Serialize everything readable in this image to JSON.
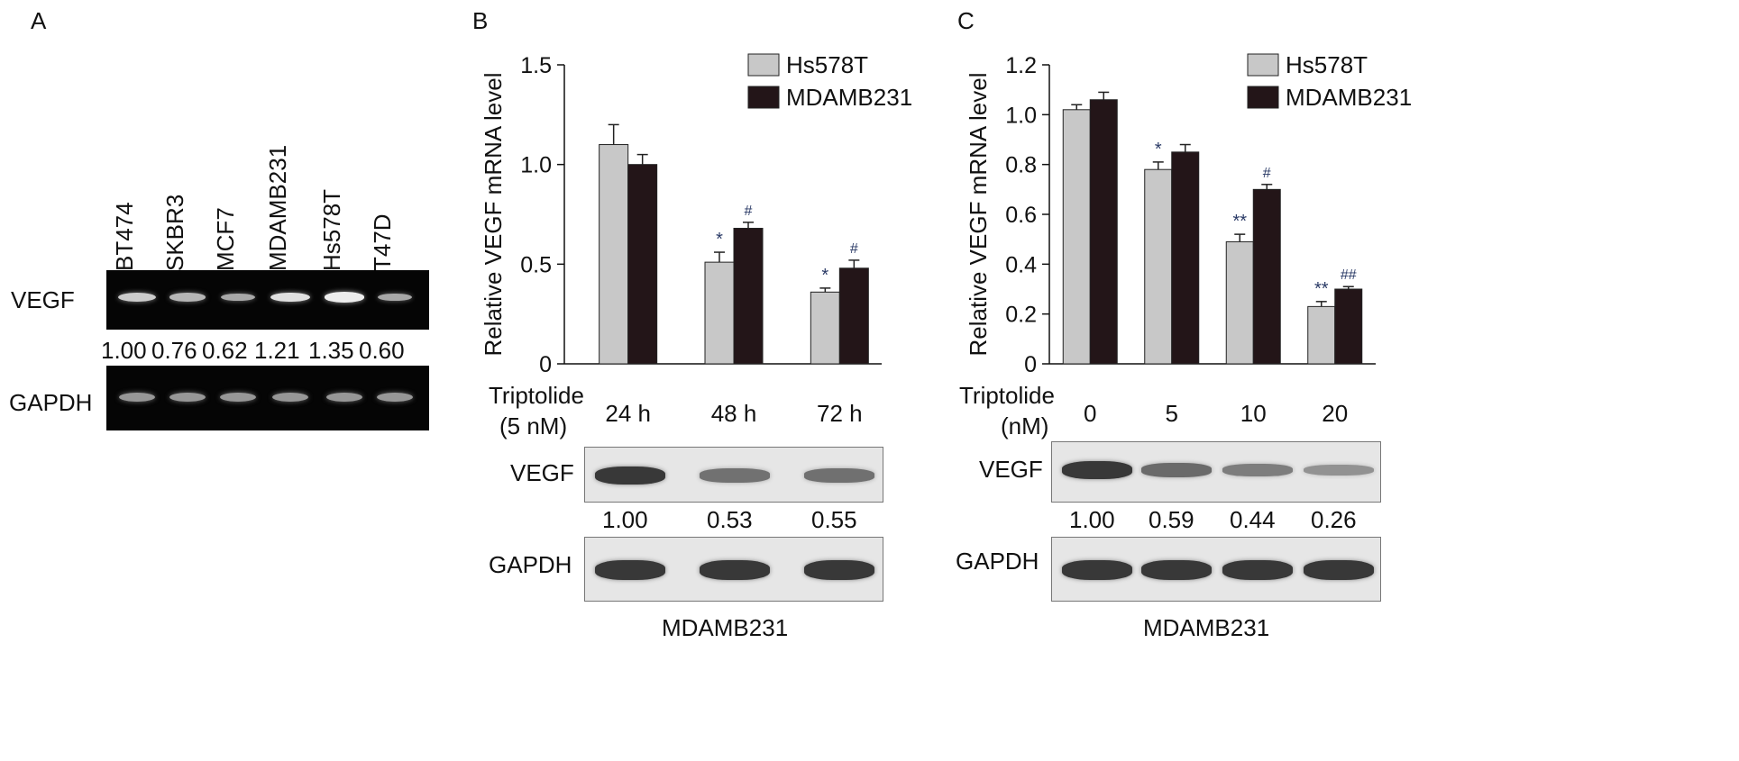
{
  "panel_a": {
    "letter": "A",
    "lanes": [
      "BT474",
      "SKBR3",
      "MCF7",
      "MDAMB231",
      "Hs578T",
      "T47D"
    ],
    "row1_label": "VEGF",
    "row2_label": "GAPDH",
    "values": [
      "1.00",
      "0.76",
      "0.62",
      "1.21",
      "1.35",
      "0.60"
    ],
    "vegf_intensity": [
      1.0,
      0.76,
      0.62,
      1.21,
      1.35,
      0.6
    ]
  },
  "panel_b": {
    "letter": "B",
    "blot": {
      "row1_label": "VEGF",
      "row2_label": "GAPDH",
      "values": [
        "1.00",
        "0.53",
        "0.55"
      ],
      "vegf_intensity": [
        1.0,
        0.53,
        0.55
      ],
      "cell_line": "MDAMB231"
    },
    "treatment_label_1": "Triptolide",
    "treatment_label_2": "(5 nM)"
  },
  "panel_c": {
    "letter": "C",
    "blot": {
      "row1_label": "VEGF",
      "row2_label": "GAPDH",
      "values": [
        "1.00",
        "0.59",
        "0.44",
        "0.26"
      ],
      "vegf_intensity": [
        1.0,
        0.59,
        0.44,
        0.26
      ],
      "cell_line": "MDAMB231"
    },
    "treatment_label_1": "Triptolide",
    "treatment_label_2": "(nM)"
  },
  "chart_data": [
    {
      "type": "bar",
      "ylabel": "Relative VEGF mRNA level",
      "ylim": [
        0,
        1.5
      ],
      "yticks": [
        "0",
        "0.5",
        "1.0",
        "1.5"
      ],
      "categories": [
        "24 h",
        "48 h",
        "72 h"
      ],
      "legend_position": "top-right",
      "series": [
        {
          "name": "Hs578T",
          "color": "#c8c8c8",
          "values": [
            1.1,
            0.51,
            0.36
          ],
          "errors": [
            0.1,
            0.05,
            0.02
          ],
          "marks": [
            "",
            "*",
            "*"
          ]
        },
        {
          "name": "MDAMB231",
          "color": "#231518",
          "values": [
            1.0,
            0.68,
            0.48
          ],
          "errors": [
            0.05,
            0.03,
            0.04
          ],
          "marks": [
            "",
            "#",
            "#"
          ]
        }
      ]
    },
    {
      "type": "bar",
      "ylabel": "Relative VEGF mRNA level",
      "ylim": [
        0,
        1.2
      ],
      "yticks": [
        "0",
        "0.2",
        "0.4",
        "0.6",
        "0.8",
        "1.0",
        "1.2"
      ],
      "categories": [
        "0",
        "5",
        "10",
        "20"
      ],
      "legend_position": "top-right",
      "series": [
        {
          "name": "Hs578T",
          "color": "#c8c8c8",
          "values": [
            1.02,
            0.78,
            0.49,
            0.23
          ],
          "errors": [
            0.02,
            0.03,
            0.03,
            0.02
          ],
          "marks": [
            "",
            "*",
            "**",
            "**"
          ]
        },
        {
          "name": "MDAMB231",
          "color": "#231518",
          "values": [
            1.06,
            0.85,
            0.7,
            0.3
          ],
          "errors": [
            0.03,
            0.03,
            0.02,
            0.01
          ],
          "marks": [
            "",
            "",
            "#",
            "##"
          ]
        }
      ]
    }
  ]
}
